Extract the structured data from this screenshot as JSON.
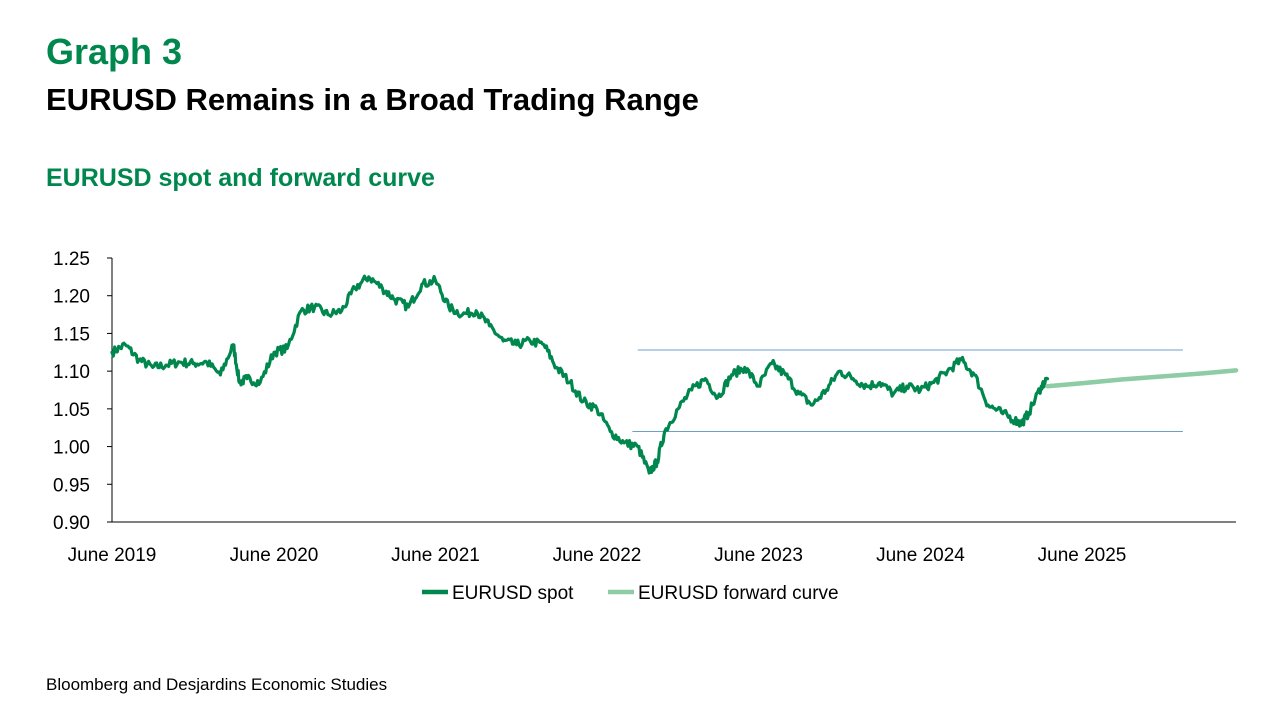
{
  "header": {
    "graph_label": "Graph 3",
    "title": "EURUSD Remains in a Broad Trading Range",
    "subtitle": "EURUSD spot and forward curve"
  },
  "source": "Bloomberg and Desjardins Economic Studies",
  "colors": {
    "spot": "#00874e",
    "forward": "#8dcca4",
    "range_lines": "#6f9fc4",
    "title_green": "#00874e"
  },
  "chart_data": {
    "type": "line",
    "title": "EURUSD spot and forward curve",
    "xlabel": "",
    "ylabel": "",
    "xlim": [
      "2019-06-01",
      "2026-05-15"
    ],
    "ylim": [
      0.9,
      1.25
    ],
    "y_ticks": [
      "0.90",
      "0.95",
      "1.00",
      "1.05",
      "1.10",
      "1.15",
      "1.20",
      "1.25"
    ],
    "x_ticks": [
      "June 2019",
      "June 2020",
      "June 2021",
      "June 2022",
      "June 2023",
      "June 2024",
      "June 2025"
    ],
    "x_tick_dates": [
      "2019-06-01",
      "2020-06-01",
      "2021-06-01",
      "2022-06-01",
      "2023-06-01",
      "2024-06-01",
      "2025-06-01"
    ],
    "legend_position": "bottom",
    "series": [
      {
        "name": "EURUSD spot",
        "x": [
          "2019-06-01",
          "2019-07-01",
          "2019-08-01",
          "2019-09-01",
          "2019-10-01",
          "2019-11-01",
          "2019-12-01",
          "2020-01-01",
          "2020-02-01",
          "2020-03-01",
          "2020-03-15",
          "2020-04-01",
          "2020-05-01",
          "2020-06-01",
          "2020-07-01",
          "2020-08-01",
          "2020-09-01",
          "2020-10-01",
          "2020-11-01",
          "2020-12-01",
          "2021-01-01",
          "2021-02-01",
          "2021-03-01",
          "2021-04-01",
          "2021-05-01",
          "2021-06-01",
          "2021-07-01",
          "2021-08-01",
          "2021-09-01",
          "2021-10-01",
          "2021-11-01",
          "2021-12-01",
          "2022-01-01",
          "2022-02-01",
          "2022-03-01",
          "2022-04-01",
          "2022-05-01",
          "2022-06-01",
          "2022-07-01",
          "2022-08-01",
          "2022-09-01",
          "2022-09-27",
          "2022-10-15",
          "2022-11-01",
          "2022-12-01",
          "2023-01-01",
          "2023-02-01",
          "2023-03-01",
          "2023-04-01",
          "2023-05-01",
          "2023-06-01",
          "2023-07-01",
          "2023-08-01",
          "2023-09-01",
          "2023-10-01",
          "2023-11-01",
          "2023-12-01",
          "2024-01-01",
          "2024-02-01",
          "2024-03-01",
          "2024-04-01",
          "2024-05-01",
          "2024-06-01",
          "2024-07-01",
          "2024-08-01",
          "2024-09-01",
          "2024-10-01",
          "2024-11-01",
          "2024-12-01",
          "2025-01-01",
          "2025-01-15",
          "2025-02-01",
          "2025-03-01",
          "2025-03-15"
        ],
        "values": [
          1.125,
          1.135,
          1.115,
          1.105,
          1.108,
          1.112,
          1.11,
          1.112,
          1.095,
          1.135,
          1.085,
          1.09,
          1.085,
          1.125,
          1.13,
          1.18,
          1.185,
          1.175,
          1.18,
          1.21,
          1.225,
          1.21,
          1.195,
          1.185,
          1.215,
          1.22,
          1.185,
          1.175,
          1.18,
          1.16,
          1.14,
          1.135,
          1.14,
          1.135,
          1.105,
          1.085,
          1.06,
          1.05,
          1.02,
          1.005,
          1.0,
          0.965,
          0.98,
          1.02,
          1.05,
          1.075,
          1.09,
          1.065,
          1.095,
          1.105,
          1.08,
          1.11,
          1.095,
          1.07,
          1.055,
          1.075,
          1.1,
          1.09,
          1.08,
          1.085,
          1.07,
          1.08,
          1.075,
          1.085,
          1.1,
          1.115,
          1.095,
          1.055,
          1.045,
          1.035,
          1.03,
          1.045,
          1.08,
          1.09
        ]
      },
      {
        "name": "EURUSD forward curve",
        "x": [
          "2025-03-15",
          "2025-06-01",
          "2025-09-01",
          "2025-12-01",
          "2026-03-01",
          "2026-05-15"
        ],
        "values": [
          1.08,
          1.084,
          1.089,
          1.093,
          1.097,
          1.101
        ]
      }
    ],
    "reference_lines": [
      {
        "y": 1.128,
        "x_start": "2022-09-01",
        "x_end": "2026-01-15"
      },
      {
        "y": 1.02,
        "x_start": "2022-08-20",
        "x_end": "2026-01-15"
      }
    ]
  }
}
